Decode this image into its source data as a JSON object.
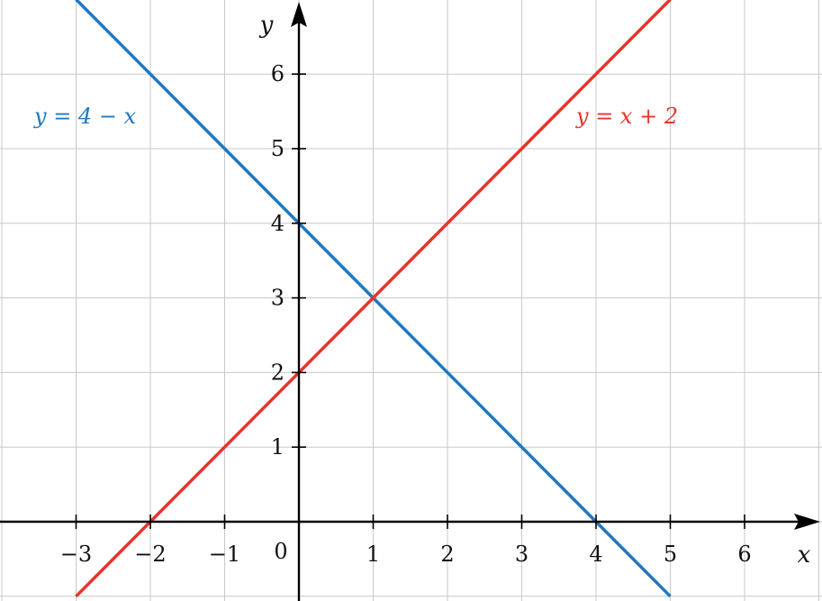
{
  "chart_data": {
    "type": "line",
    "title": "",
    "xlabel": "x",
    "ylabel": "y",
    "xlim": [
      -4,
      7
    ],
    "ylim": [
      -1,
      7
    ],
    "grid": true,
    "origin_label": "0",
    "x_ticks": [
      {
        "value": -3,
        "label": "−3"
      },
      {
        "value": -2,
        "label": "−2"
      },
      {
        "value": -1,
        "label": "−1"
      },
      {
        "value": 1,
        "label": "1"
      },
      {
        "value": 2,
        "label": "2"
      },
      {
        "value": 3,
        "label": "3"
      },
      {
        "value": 4,
        "label": "4"
      },
      {
        "value": 5,
        "label": "5"
      },
      {
        "value": 6,
        "label": "6"
      }
    ],
    "y_ticks": [
      {
        "value": 1,
        "label": "1"
      },
      {
        "value": 2,
        "label": "2"
      },
      {
        "value": 3,
        "label": "3"
      },
      {
        "value": 4,
        "label": "4"
      },
      {
        "value": 5,
        "label": "5"
      },
      {
        "value": 6,
        "label": "6"
      }
    ],
    "series": [
      {
        "name": "y = 4 − x",
        "color": "#1f78c1",
        "x": [
          -3,
          5
        ],
        "y": [
          7,
          -1
        ],
        "label_position": "top-left"
      },
      {
        "name": "y = x + 2",
        "color": "#e8332a",
        "x": [
          -3,
          5
        ],
        "y": [
          -1,
          7
        ],
        "label_position": "top-right"
      }
    ]
  }
}
